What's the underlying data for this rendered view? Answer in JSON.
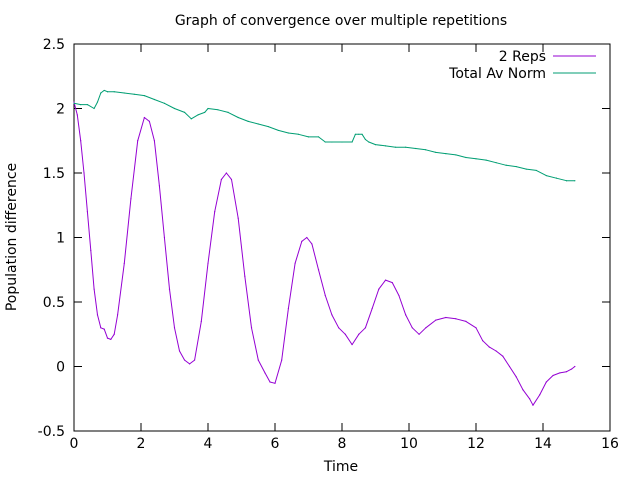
{
  "chart_data": {
    "type": "line",
    "title": "Graph of convergence over multiple repetitions",
    "xlabel": "Time",
    "ylabel": "Population difference",
    "xlim": [
      0,
      16
    ],
    "ylim": [
      -0.5,
      2.5
    ],
    "xticks": [
      0,
      2,
      4,
      6,
      8,
      10,
      12,
      14,
      16
    ],
    "xtick_labels": [
      "0",
      "2",
      "4",
      "6",
      "8",
      "10",
      "12",
      "14",
      "16"
    ],
    "yticks": [
      -0.5,
      0,
      0.5,
      1,
      1.5,
      2,
      2.5
    ],
    "ytick_labels": [
      "-0.5",
      "0",
      "0.5",
      "1",
      "1.5",
      "2",
      "2.5"
    ],
    "grid": false,
    "legend_position": "top-right",
    "series": [
      {
        "name": "2 Reps",
        "color": "#9400d3",
        "x": [
          0,
          0.1,
          0.2,
          0.3,
          0.4,
          0.5,
          0.6,
          0.7,
          0.8,
          0.9,
          1.0,
          1.1,
          1.2,
          1.3,
          1.5,
          1.7,
          1.9,
          2.1,
          2.25,
          2.4,
          2.55,
          2.7,
          2.85,
          3.0,
          3.15,
          3.3,
          3.45,
          3.6,
          3.8,
          4.0,
          4.2,
          4.4,
          4.55,
          4.7,
          4.9,
          5.1,
          5.3,
          5.5,
          5.7,
          5.85,
          6.0,
          6.2,
          6.4,
          6.6,
          6.8,
          6.95,
          7.1,
          7.3,
          7.5,
          7.7,
          7.9,
          8.1,
          8.3,
          8.5,
          8.7,
          8.9,
          9.1,
          9.3,
          9.5,
          9.7,
          9.9,
          10.1,
          10.3,
          10.5,
          10.8,
          11.1,
          11.4,
          11.7,
          12.0,
          12.2,
          12.4,
          12.6,
          12.8,
          13.0,
          13.2,
          13.4,
          13.6,
          13.7,
          13.9,
          14.1,
          14.3,
          14.5,
          14.7,
          14.85,
          14.95
        ],
        "y": [
          2.05,
          1.95,
          1.75,
          1.5,
          1.2,
          0.9,
          0.6,
          0.4,
          0.3,
          0.29,
          0.22,
          0.21,
          0.25,
          0.4,
          0.8,
          1.3,
          1.75,
          1.93,
          1.9,
          1.75,
          1.4,
          1.0,
          0.6,
          0.3,
          0.12,
          0.05,
          0.02,
          0.05,
          0.35,
          0.8,
          1.2,
          1.45,
          1.5,
          1.45,
          1.15,
          0.7,
          0.3,
          0.05,
          -0.05,
          -0.12,
          -0.13,
          0.05,
          0.45,
          0.8,
          0.97,
          1.0,
          0.95,
          0.75,
          0.55,
          0.4,
          0.3,
          0.25,
          0.17,
          0.25,
          0.3,
          0.45,
          0.6,
          0.67,
          0.65,
          0.55,
          0.4,
          0.3,
          0.25,
          0.3,
          0.36,
          0.38,
          0.37,
          0.35,
          0.3,
          0.2,
          0.15,
          0.12,
          0.08,
          0.0,
          -0.08,
          -0.18,
          -0.25,
          -0.3,
          -0.22,
          -0.12,
          -0.07,
          -0.05,
          -0.04,
          -0.02,
          0.0
        ]
      },
      {
        "name": "Total Av Norm",
        "color": "#009e73",
        "x": [
          0,
          0.2,
          0.4,
          0.6,
          0.7,
          0.8,
          0.9,
          1.0,
          1.2,
          1.5,
          1.8,
          2.1,
          2.4,
          2.7,
          3.0,
          3.3,
          3.5,
          3.7,
          3.9,
          4.0,
          4.3,
          4.6,
          4.9,
          5.2,
          5.5,
          5.8,
          6.1,
          6.4,
          6.7,
          7.0,
          7.3,
          7.5,
          7.7,
          8.0,
          8.3,
          8.4,
          8.5,
          8.6,
          8.7,
          8.8,
          9.0,
          9.3,
          9.6,
          9.9,
          10.2,
          10.5,
          10.8,
          11.1,
          11.4,
          11.7,
          12.0,
          12.3,
          12.6,
          12.9,
          13.2,
          13.5,
          13.8,
          14.1,
          14.4,
          14.7,
          14.95
        ],
        "y": [
          2.04,
          2.03,
          2.03,
          2.0,
          2.05,
          2.12,
          2.14,
          2.13,
          2.13,
          2.12,
          2.11,
          2.1,
          2.07,
          2.04,
          2.0,
          1.97,
          1.92,
          1.95,
          1.97,
          2.0,
          1.99,
          1.97,
          1.93,
          1.9,
          1.88,
          1.86,
          1.83,
          1.81,
          1.8,
          1.78,
          1.78,
          1.74,
          1.74,
          1.74,
          1.74,
          1.8,
          1.8,
          1.8,
          1.76,
          1.74,
          1.72,
          1.71,
          1.7,
          1.7,
          1.69,
          1.68,
          1.66,
          1.65,
          1.64,
          1.62,
          1.61,
          1.6,
          1.58,
          1.56,
          1.55,
          1.53,
          1.52,
          1.48,
          1.46,
          1.44,
          1.44
        ]
      }
    ]
  }
}
